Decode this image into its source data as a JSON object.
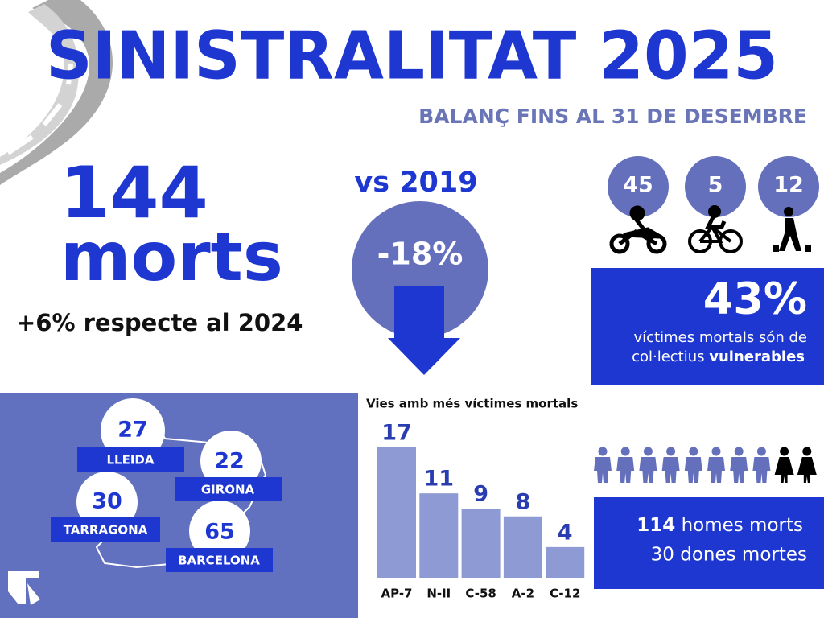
{
  "header": {
    "title": "SINISTRALITAT 2025",
    "subtitle": "BALANÇ FINS AL 31 DE DESEMBRE"
  },
  "total": {
    "number": "144",
    "unit": "morts",
    "change": "+6% respecte al 2024"
  },
  "comparison": {
    "label": "vs 2019",
    "value": "-18%"
  },
  "vulnerable": {
    "counts": [
      "45",
      "5",
      "12"
    ],
    "share": "43%",
    "line1": "víctimes mortals són de",
    "line2": "col·lectius",
    "line2_bold": "vulnerables"
  },
  "provinces": [
    {
      "name": "LLEIDA",
      "value": "27"
    },
    {
      "name": "GIRONA",
      "value": "22"
    },
    {
      "name": "TARRAGONA",
      "value": "30"
    },
    {
      "name": "BARCELONA",
      "value": "65"
    }
  ],
  "chart_data": {
    "type": "bar",
    "title": "Vies amb més víctimes mortals",
    "categories": [
      "AP-7",
      "N-II",
      "C-58",
      "A-2",
      "C-12"
    ],
    "values": [
      17,
      11,
      9,
      8,
      4
    ],
    "color": "#8e9ad3"
  },
  "gender": {
    "men_count": "114",
    "men_text": "homes morts",
    "women_text": "30 dones mortes"
  }
}
